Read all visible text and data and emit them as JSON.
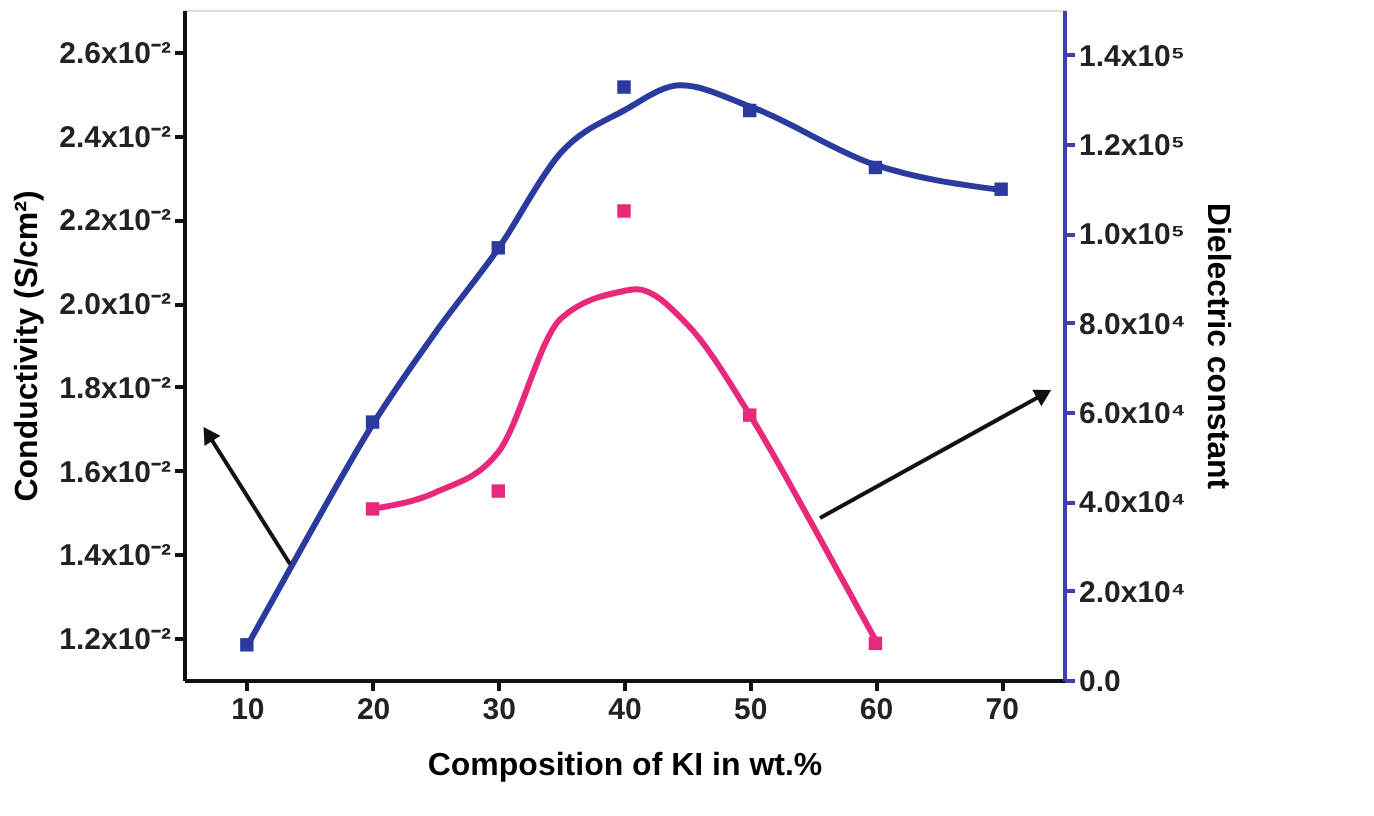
{
  "chart_data": {
    "type": "scatter",
    "xlabel": "Composition of KI in wt.%",
    "ylabel": "Conductivity (S/cm²)",
    "y2label": "Dielectric constant",
    "xlim": [
      5,
      75
    ],
    "xticks": [
      10,
      20,
      30,
      40,
      50,
      60,
      70
    ],
    "ylim": [
      0.011,
      0.027
    ],
    "yticks": [
      {
        "value": 0.012,
        "label": "1.2x10⁻²"
      },
      {
        "value": 0.014,
        "label": "1.4x10⁻²"
      },
      {
        "value": 0.016,
        "label": "1.6x10⁻²"
      },
      {
        "value": 0.018,
        "label": "1.8x10⁻²"
      },
      {
        "value": 0.02,
        "label": "2.0x10⁻²"
      },
      {
        "value": 0.022,
        "label": "2.2x10⁻²"
      },
      {
        "value": 0.024,
        "label": "2.4x10⁻²"
      },
      {
        "value": 0.026,
        "label": "2.6x10⁻²"
      }
    ],
    "y2lim": [
      0,
      150000
    ],
    "y2ticks": [
      {
        "value": 0,
        "label": "0.0"
      },
      {
        "value": 20000,
        "label": "2.0x10⁴"
      },
      {
        "value": 40000,
        "label": "4.0x10⁴"
      },
      {
        "value": 60000,
        "label": "6.0x10⁴"
      },
      {
        "value": 80000,
        "label": "8.0x10⁴"
      },
      {
        "value": 100000,
        "label": "1.0x10⁵"
      },
      {
        "value": 120000,
        "label": "1.2x10⁵"
      },
      {
        "value": 140000,
        "label": "1.4x10⁵"
      }
    ],
    "grid": false,
    "series": [
      {
        "axis": "y",
        "marker": "square",
        "color": "#2b3a9e",
        "x": [
          10,
          20,
          30,
          40,
          50,
          60,
          70
        ],
        "values": [
          0.01184,
          0.01716,
          0.02132,
          0.02516,
          0.0246,
          0.02324,
          0.02272
        ]
      },
      {
        "type": "line",
        "axis": "y",
        "color": "#2b3a9e",
        "marker": "none",
        "line_style": "solid",
        "x": [
          10,
          15,
          20,
          25,
          30,
          35,
          40,
          44.5,
          50,
          60,
          70
        ],
        "values": [
          0.0118,
          0.0145,
          0.0171,
          0.0193,
          0.0213,
          0.0236,
          0.0246,
          0.0252,
          0.0247,
          0.0233,
          0.0227
        ]
      },
      {
        "axis": "y2",
        "marker": "square",
        "color": "#e8287a",
        "x": [
          20,
          30,
          40,
          50,
          60
        ],
        "values": [
          38300,
          42300,
          105000,
          59300,
          8200
        ]
      },
      {
        "type": "line",
        "axis": "y2",
        "color": "#e8287a",
        "marker": "none",
        "line_style": "solid",
        "x": [
          20,
          25,
          30,
          35,
          40,
          41,
          45,
          50,
          55,
          60
        ],
        "values": [
          38300,
          42000,
          51000,
          81000,
          87100,
          87500,
          79700,
          59400,
          34700,
          9000
        ]
      }
    ]
  }
}
